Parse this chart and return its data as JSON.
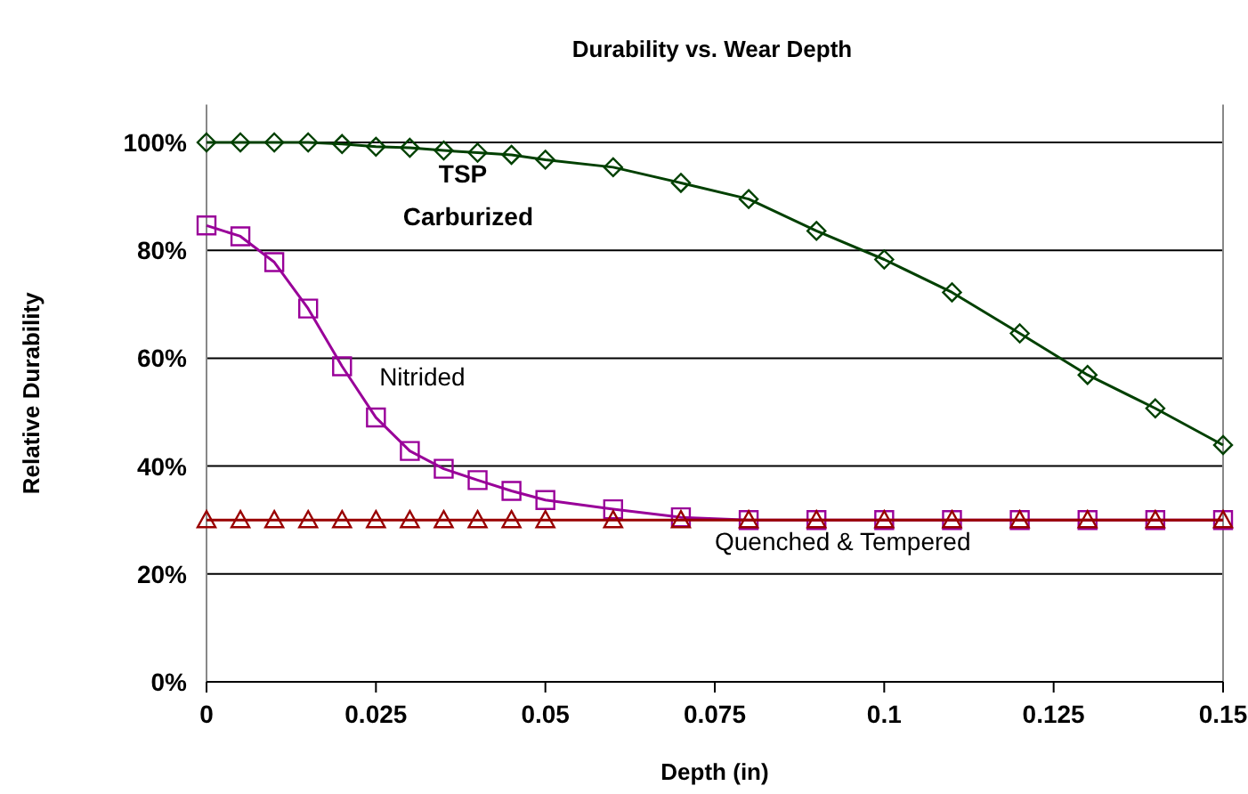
{
  "chart_data": {
    "type": "line",
    "title": "Durability vs. Wear Depth",
    "xlabel": "Depth (in)",
    "ylabel": "Relative Durability",
    "x": [
      0,
      0.005,
      0.01,
      0.015,
      0.02,
      0.025,
      0.03,
      0.035,
      0.04,
      0.045,
      0.05,
      0.06,
      0.07,
      0.08,
      0.09,
      0.1,
      0.11,
      0.12,
      0.13,
      0.14,
      0.15
    ],
    "series": [
      {
        "name": "TSP\nCarburized",
        "color": "#004000",
        "marker": "diamond",
        "values": [
          100,
          100,
          100,
          100,
          99.7,
          99.2,
          99,
          98.5,
          98.1,
          97.7,
          96.8,
          95.4,
          92.5,
          89.5,
          83.6,
          78.3,
          72.2,
          64.6,
          56.9,
          50.7,
          43.9
        ]
      },
      {
        "name": "Nitrided",
        "color": "#990099",
        "marker": "square",
        "values": [
          84.6,
          82.6,
          77.8,
          69.2,
          58.5,
          49,
          42.8,
          39.5,
          37.4,
          35.4,
          33.7,
          32,
          30.5,
          30,
          30,
          30,
          30,
          30,
          30,
          30,
          30
        ]
      },
      {
        "name": "Quenched & Tempered",
        "color": "#990000",
        "marker": "triangle",
        "values": [
          30,
          30,
          30,
          30,
          30,
          30,
          30,
          30,
          30,
          30,
          30,
          30,
          30,
          30,
          30,
          30,
          30,
          30,
          30,
          30,
          30
        ]
      }
    ],
    "xlim": [
      0,
      0.15
    ],
    "xticks": [
      0,
      0.025,
      0.05,
      0.075,
      0.1,
      0.125,
      0.15
    ],
    "ylim": [
      0,
      107
    ],
    "yticks": [
      {
        "value": 0,
        "label": "0%"
      },
      {
        "value": 20,
        "label": "20%"
      },
      {
        "value": 40,
        "label": "40%"
      },
      {
        "value": 60,
        "label": "60%"
      },
      {
        "value": 80,
        "label": "80%"
      },
      {
        "value": 100,
        "label": "100%"
      }
    ],
    "grid": "y",
    "line_style": "solid"
  }
}
